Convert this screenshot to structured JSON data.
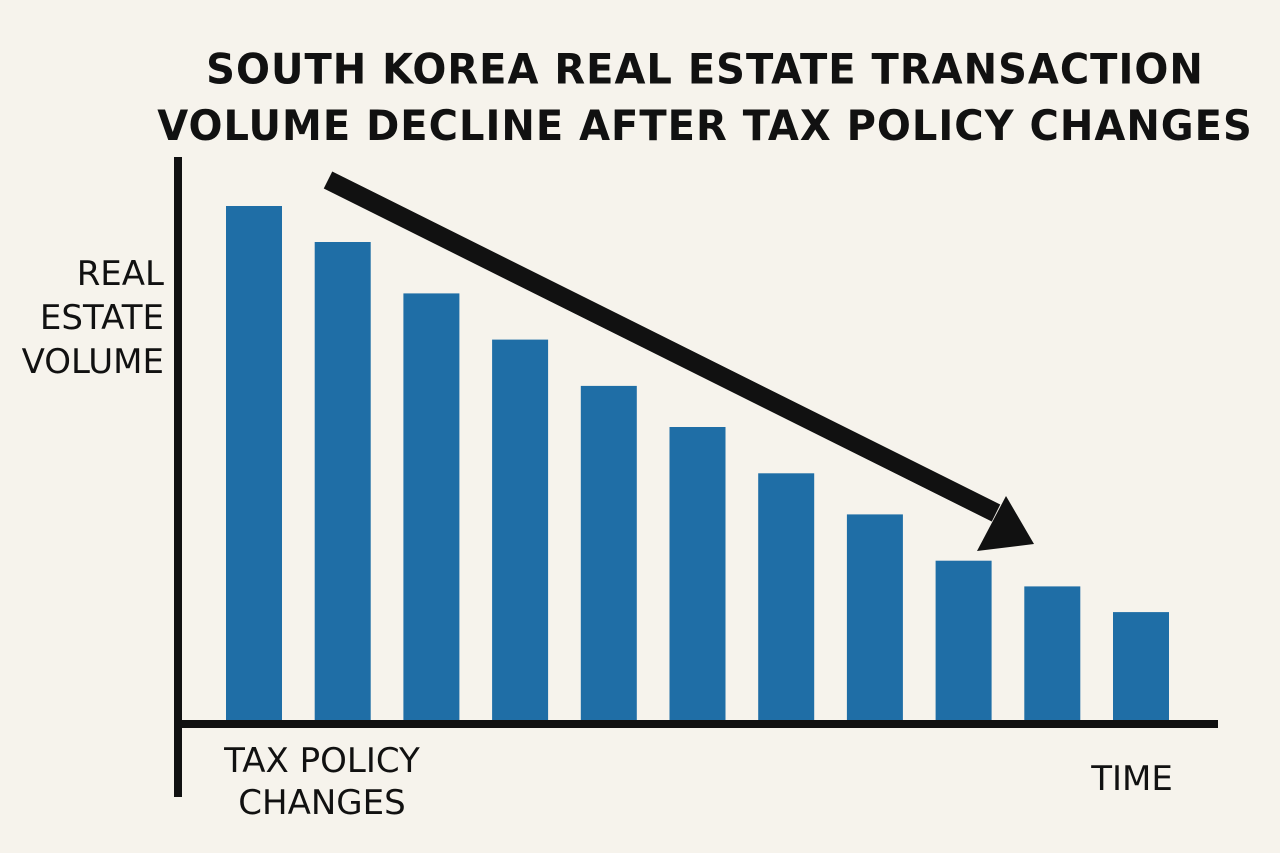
{
  "title_lines": [
    "SOUTH KOREA REAL ESTATE TRANSACTION",
    "VOLUME DECLINE AFTER TAX POLICY CHANGES"
  ],
  "y_axis_label_lines": [
    "REAL",
    "ESTATE",
    "VOLUME"
  ],
  "x_annotation_lines": [
    "TAX POLICY",
    "CHANGES"
  ],
  "x_axis_label": "TIME",
  "colors": {
    "bar": "#1f6ea6",
    "axis": "#111111",
    "arrow": "#111111",
    "background": "#f6f3ec"
  },
  "chart_data": {
    "type": "bar",
    "title": "SOUTH KOREA REAL ESTATE TRANSACTION VOLUME DECLINE AFTER TAX POLICY CHANGES",
    "xlabel": "TIME",
    "ylabel": "REAL ESTATE VOLUME",
    "annotations": [
      "TAX POLICY CHANGES"
    ],
    "trend_arrow": "downward",
    "values": [
      100,
      93,
      83,
      74,
      65,
      57,
      48,
      40,
      31,
      26,
      21
    ],
    "ylim": [
      0,
      100
    ],
    "grid": false,
    "legend": "none"
  }
}
